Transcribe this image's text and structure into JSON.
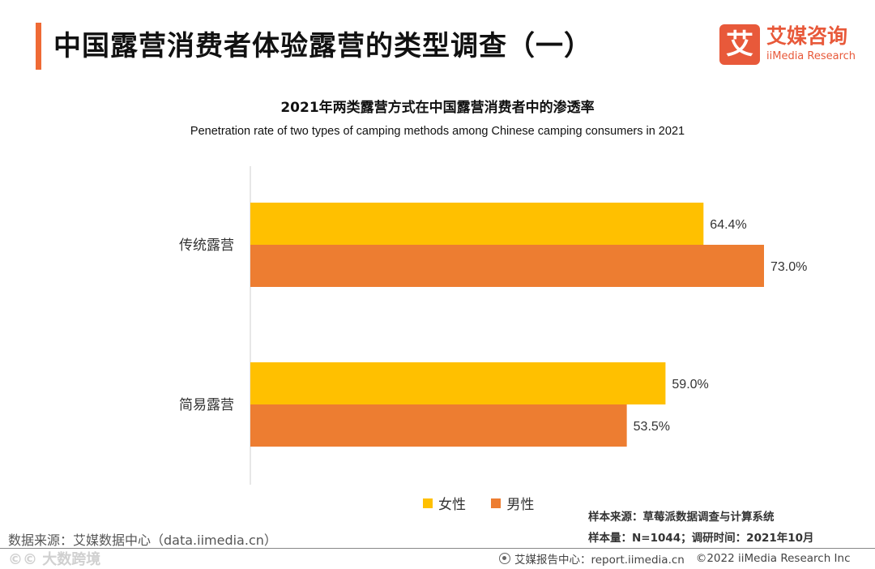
{
  "header": {
    "title": "中国露营消费者体验露营的类型调查（一）"
  },
  "logo": {
    "mark": "艾",
    "cn": "艾媒咨询",
    "en": "iiMedia Research"
  },
  "colors": {
    "accent": "#ef6a35",
    "female": "#ffc000",
    "male": "#ed7d31"
  },
  "chart_data": {
    "type": "bar",
    "orientation": "horizontal",
    "title": "2021年两类露营方式在中国露营消费者中的渗透率",
    "subtitle": "Penetration rate of two types of camping methods among Chinese camping consumers in 2021",
    "categories": [
      "传统露营",
      "简易露营"
    ],
    "series": [
      {
        "name": "女性",
        "values": [
          64.4,
          59.0
        ],
        "labels": [
          "64.4%",
          "59.0%"
        ]
      },
      {
        "name": "男性",
        "values": [
          73.0,
          53.5
        ],
        "labels": [
          "73.0%",
          "53.5%"
        ]
      }
    ],
    "xlim": [
      0,
      80
    ],
    "unit": "%",
    "grid": false,
    "legend": "bottom-center"
  },
  "sample": {
    "source": "样本来源：草莓派数据调查与计算系统",
    "size": "样本量：N=1044；调研时间：2021年10月"
  },
  "data_source": "数据来源：艾媒数据中心（data.iimedia.cn）",
  "watermark": "©© 大数跨境",
  "footer": {
    "center": "艾媒报告中心：report.iimedia.cn",
    "copyright": "©2022  iiMedia Research  Inc"
  }
}
